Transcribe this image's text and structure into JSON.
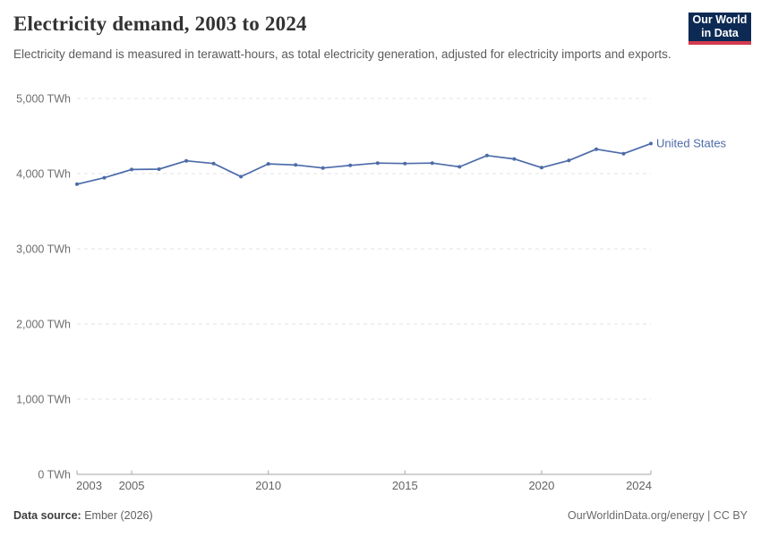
{
  "header": {
    "title": "Electricity demand, 2003 to 2024",
    "subtitle": "Electricity demand is measured in terawatt-hours, as total electricity generation, adjusted for electricity imports and exports.",
    "logo": {
      "line1": "Our World",
      "line2": "in Data",
      "bg_color": "#0d2a54",
      "accent_color": "#d43b4d"
    }
  },
  "footer": {
    "datasource_label": "Data source:",
    "datasource_value": "Ember (2026)",
    "credit": "OurWorldinData.org/energy | CC BY"
  },
  "chart_data": {
    "type": "line",
    "title": "Electricity demand, 2003 to 2024",
    "xlabel": "",
    "ylabel": "",
    "unit": "TWh",
    "xlim": [
      2003,
      2024
    ],
    "ylim": [
      0,
      5000
    ],
    "grid": "horizontal-dashed",
    "legend_position": "end-of-line",
    "x": [
      2003,
      2004,
      2005,
      2006,
      2007,
      2008,
      2009,
      2010,
      2011,
      2012,
      2013,
      2014,
      2015,
      2016,
      2017,
      2018,
      2019,
      2020,
      2021,
      2022,
      2023,
      2024
    ],
    "series": [
      {
        "name": "United States",
        "color": "#4c6ba8",
        "values": [
          3860,
          3945,
          4055,
          4060,
          4170,
          4135,
          3960,
          4130,
          4115,
          4075,
          4110,
          4140,
          4135,
          4140,
          4090,
          4240,
          4195,
          4080,
          4175,
          4325,
          4265,
          4400
        ]
      }
    ],
    "yticks": [
      0,
      1000,
      2000,
      3000,
      4000,
      5000
    ],
    "ytick_labels": [
      "0 TWh",
      "1,000 TWh",
      "2,000 TWh",
      "3,000 TWh",
      "4,000 TWh",
      "5,000 TWh"
    ],
    "xticks": [
      2003,
      2005,
      2010,
      2015,
      2020,
      2024
    ],
    "xtick_labels": [
      "2003",
      "2005",
      "2010",
      "2015",
      "2020",
      "2024"
    ]
  },
  "colors": {
    "axis_line": "#a3a3a3",
    "tick_mark": "#a8a8a8",
    "gridline": "#e3e3e3",
    "y_label": "#6e6e6e",
    "x_label": "#636363"
  }
}
